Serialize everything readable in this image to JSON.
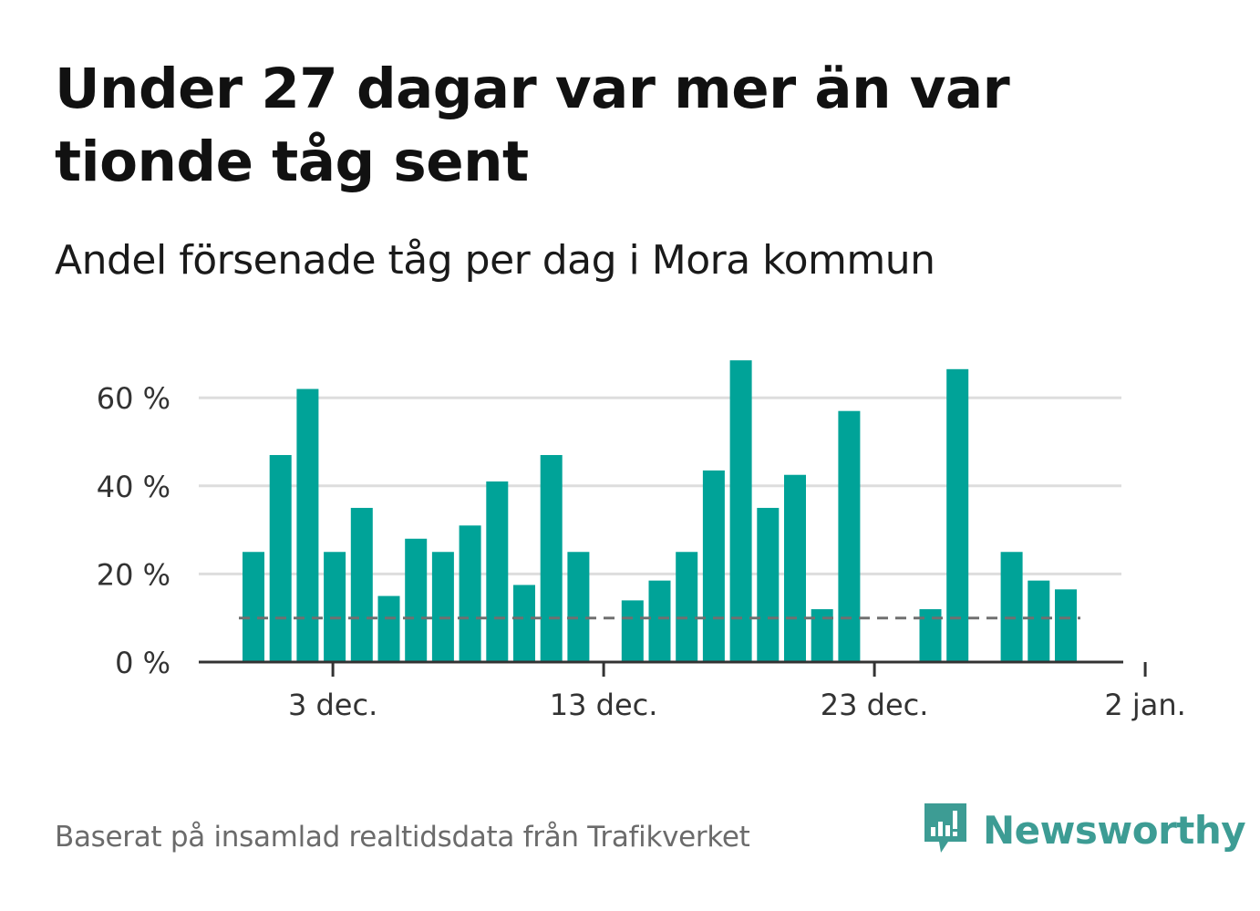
{
  "title": "Under 27 dagar var mer än var tionde tåg sent",
  "subtitle": "Andel försenade tåg per dag i Mora kommun",
  "footer": {
    "source": "Baserat på insamlad realtidsdata från Trafikverket"
  },
  "logo": {
    "text": "Newsworthy",
    "icon": "newsworthy-logo-icon",
    "color": "#3d9c94"
  },
  "colors": {
    "bar": "#00a398",
    "reference_line": "#707070",
    "grid": "#dddddd",
    "axis": "#333333"
  },
  "chart_data": {
    "type": "bar",
    "x_start_date": "2023-11-30",
    "x": [
      "30 nov.",
      "1 dec.",
      "2 dec.",
      "3 dec.",
      "4 dec.",
      "5 dec.",
      "6 dec.",
      "7 dec.",
      "8 dec.",
      "9 dec.",
      "10 dec.",
      "11 dec.",
      "12 dec.",
      "13 dec.",
      "14 dec.",
      "15 dec.",
      "16 dec.",
      "17 dec.",
      "18 dec.",
      "19 dec.",
      "20 dec.",
      "21 dec.",
      "22 dec.",
      "23 dec.",
      "24 dec.",
      "25 dec.",
      "26 dec.",
      "27 dec.",
      "28 dec.",
      "29 dec.",
      "30 dec.",
      "31 dec.",
      "1 jan.",
      "2 jan."
    ],
    "values": [
      25,
      47,
      62,
      25,
      35,
      15,
      28,
      25,
      31,
      41,
      17.5,
      47,
      25,
      0,
      14,
      18.5,
      25,
      43.5,
      68.5,
      35,
      42.5,
      12,
      57,
      0,
      0,
      12,
      66.5,
      0,
      25,
      18.5,
      16.5,
      null,
      null,
      null
    ],
    "reference_line": 10,
    "ylim": [
      0,
      70
    ],
    "yticks": [
      0,
      20,
      40,
      60
    ],
    "ytick_labels": [
      "0 %",
      "20 %",
      "40 %",
      "60 %"
    ],
    "xtick_labels": [
      "3 dec.",
      "13 dec.",
      "23 dec.",
      "2 jan."
    ],
    "xtick_positions": [
      3,
      13,
      23,
      33
    ],
    "xlabel": "",
    "ylabel": "",
    "grid": true,
    "legend": "none"
  }
}
